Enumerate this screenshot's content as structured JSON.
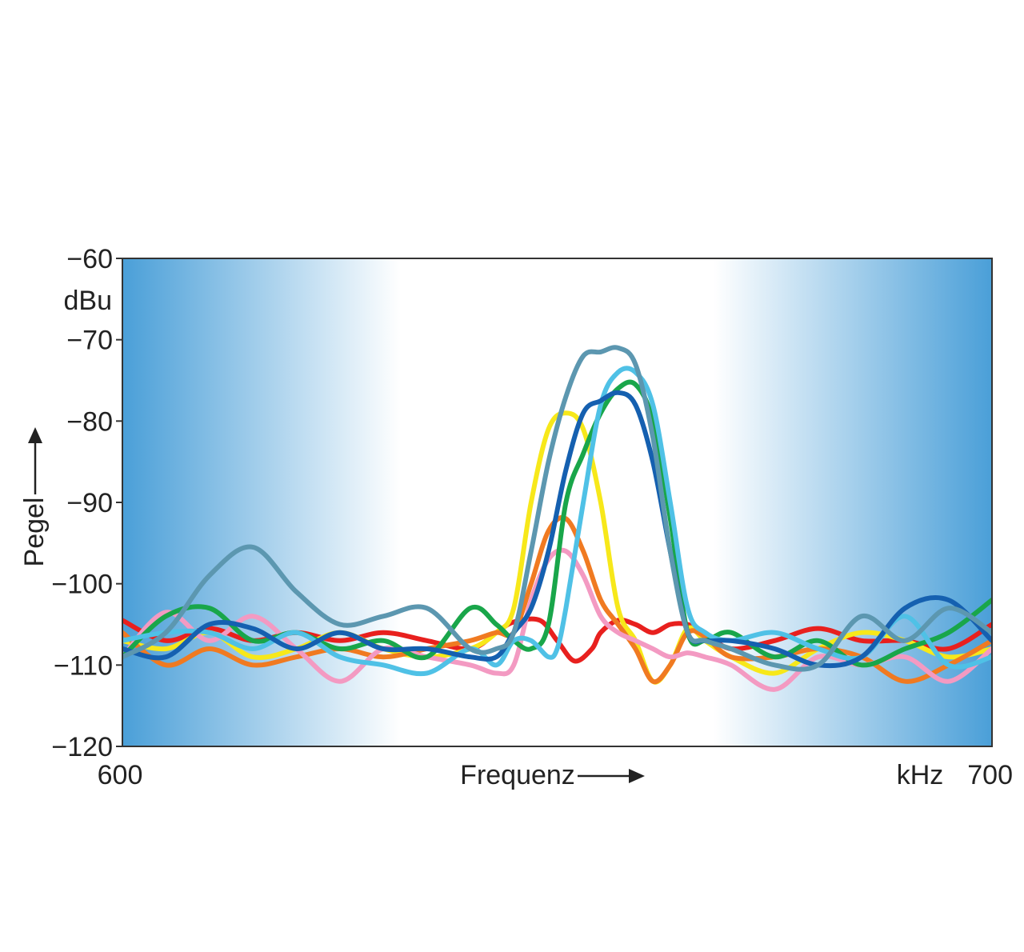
{
  "chart_data": {
    "type": "line",
    "xlabel": "Frequenz",
    "xunit": "kHz",
    "ylabel": "Pegel",
    "yunit": "dBu",
    "xlim": [
      600,
      700
    ],
    "ylim": [
      -120,
      -60
    ],
    "xticks": [
      {
        "value": 600,
        "label": "600"
      },
      {
        "value": 700,
        "label": "700"
      }
    ],
    "yticks": [
      {
        "value": -60,
        "label": "−60"
      },
      {
        "value": -70,
        "label": "−70"
      },
      {
        "value": -80,
        "label": "−80"
      },
      {
        "value": -90,
        "label": "−90"
      },
      {
        "value": -100,
        "label": "−100"
      },
      {
        "value": -110,
        "label": "−110"
      },
      {
        "value": -120,
        "label": "−120"
      }
    ],
    "grid": false,
    "legend": "none",
    "background": {
      "edge": "#4a9fd8",
      "center": "#ffffff"
    },
    "series": [
      {
        "color": "#e8201e",
        "x": [
          600,
          605,
          610,
          615,
          620,
          625,
          630,
          635,
          640,
          643,
          645,
          648,
          650,
          652,
          654,
          655,
          657,
          659,
          661,
          663,
          665,
          667,
          670,
          675,
          680,
          685,
          690,
          695,
          700
        ],
        "y": [
          -104.5,
          -107,
          -105.5,
          -107,
          -106,
          -107,
          -106,
          -107,
          -108,
          -106,
          -104.7,
          -104.5,
          -107,
          -109.5,
          -108,
          -106,
          -104.5,
          -105,
          -106,
          -105,
          -105,
          -106,
          -108,
          -107,
          -105.5,
          -107,
          -107,
          -108,
          -105
        ]
      },
      {
        "color": "#f7e81a",
        "x": [
          600,
          605,
          610,
          615,
          620,
          625,
          630,
          635,
          640,
          643,
          645,
          647,
          649,
          651,
          653,
          655,
          657,
          659,
          661,
          663,
          665,
          667,
          670,
          675,
          680,
          685,
          690,
          695,
          700
        ],
        "y": [
          -107,
          -108,
          -106,
          -109,
          -108,
          -106,
          -108,
          -109,
          -108,
          -106,
          -103,
          -90,
          -81,
          -79,
          -81,
          -90,
          -103,
          -107,
          -112,
          -110,
          -105.5,
          -107,
          -109,
          -111,
          -108,
          -106,
          -107,
          -109,
          -108
        ]
      },
      {
        "color": "#f07a21",
        "x": [
          600,
          605,
          610,
          615,
          620,
          625,
          630,
          635,
          640,
          643,
          645,
          647,
          649,
          651,
          653,
          655,
          657,
          659,
          661,
          663,
          665,
          667,
          670,
          675,
          680,
          685,
          690,
          695,
          700
        ],
        "y": [
          -106,
          -110,
          -108,
          -110,
          -109,
          -108,
          -109,
          -108,
          -107,
          -106,
          -106,
          -100,
          -93.5,
          -92,
          -96,
          -102,
          -105,
          -108,
          -112,
          -110,
          -106,
          -106.5,
          -109,
          -109,
          -108,
          -109,
          -112,
          -110,
          -107
        ]
      },
      {
        "color": "#f39ac2",
        "x": [
          600,
          605,
          610,
          615,
          620,
          625,
          630,
          635,
          640,
          643,
          645,
          647,
          649,
          651,
          653,
          655,
          657,
          659,
          661,
          663,
          665,
          667,
          670,
          675,
          680,
          685,
          690,
          695,
          700
        ],
        "y": [
          -109,
          -103.5,
          -107,
          -104,
          -108,
          -112,
          -108,
          -109,
          -110,
          -111,
          -110,
          -102,
          -97,
          -96,
          -99,
          -104,
          -106,
          -107,
          -108,
          -109,
          -108.5,
          -109,
          -110,
          -113,
          -109,
          -110,
          -109,
          -112,
          -108
        ]
      },
      {
        "color": "#19a64a",
        "x": [
          600,
          605,
          610,
          615,
          620,
          625,
          630,
          635,
          640,
          643,
          645,
          647,
          649,
          651,
          653,
          655,
          657,
          659,
          661,
          663,
          665,
          667,
          670,
          675,
          680,
          685,
          690,
          695,
          700
        ],
        "y": [
          -109,
          -104,
          -103,
          -107,
          -106,
          -108,
          -107,
          -109,
          -103,
          -105,
          -107,
          -108,
          -105,
          -90,
          -84,
          -79,
          -76,
          -75.5,
          -80,
          -92,
          -106,
          -107,
          -106,
          -109,
          -107,
          -110,
          -108,
          -106,
          -102
        ]
      },
      {
        "color": "#4fc1e6",
        "x": [
          600,
          605,
          610,
          615,
          620,
          625,
          630,
          635,
          640,
          643,
          645,
          647,
          649,
          650,
          651,
          653,
          655,
          657,
          659,
          661,
          663,
          665,
          667,
          670,
          675,
          680,
          685,
          690,
          695,
          700
        ],
        "y": [
          -107,
          -106,
          -106,
          -108,
          -106,
          -109,
          -110,
          -111,
          -108,
          -110,
          -107,
          -107,
          -109,
          -108,
          -103,
          -90,
          -78,
          -74,
          -74,
          -78,
          -90,
          -103,
          -106,
          -107,
          -106,
          -108,
          -109,
          -104,
          -110,
          -109
        ]
      },
      {
        "color": "#1560b0",
        "x": [
          600,
          605,
          610,
          615,
          620,
          625,
          630,
          635,
          640,
          643,
          645,
          647,
          649,
          651,
          653,
          655,
          657,
          659,
          661,
          663,
          665,
          667,
          670,
          675,
          680,
          685,
          690,
          695,
          700
        ],
        "y": [
          -108,
          -109,
          -105,
          -105.5,
          -108,
          -106,
          -108,
          -108,
          -109,
          -109,
          -106,
          -103,
          -96,
          -86,
          -79,
          -77.5,
          -76.5,
          -78,
          -85,
          -96,
          -106,
          -107,
          -107,
          -108,
          -110,
          -109,
          -103,
          -102,
          -107
        ]
      },
      {
        "color": "#5c97b0",
        "x": [
          600,
          605,
          610,
          615,
          620,
          625,
          630,
          635,
          640,
          643,
          645,
          647,
          649,
          651,
          653,
          655,
          657,
          659,
          661,
          663,
          665,
          667,
          670,
          675,
          680,
          685,
          690,
          695,
          700
        ],
        "y": [
          -109,
          -106,
          -99,
          -95.5,
          -101,
          -105,
          -104,
          -103,
          -108,
          -108,
          -106,
          -96,
          -85,
          -77,
          -72,
          -71.5,
          -71,
          -73,
          -82,
          -96,
          -106,
          -107,
          -108,
          -110,
          -110,
          -104,
          -107,
          -103,
          -106
        ]
      }
    ]
  }
}
